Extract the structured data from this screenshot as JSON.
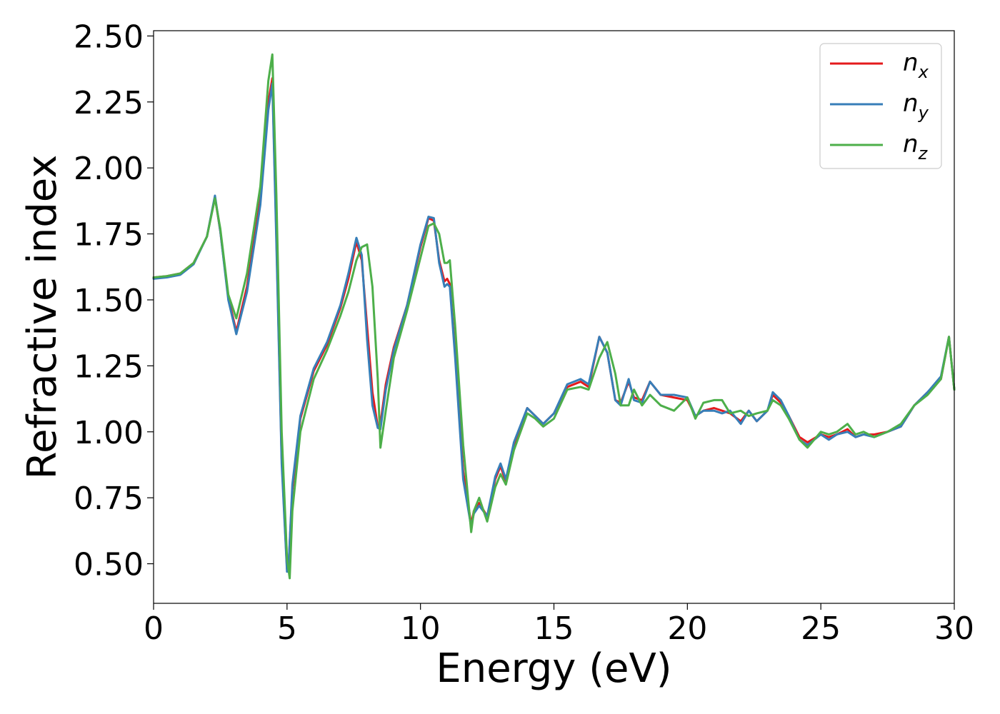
{
  "chart_data": {
    "type": "line",
    "title": "",
    "xlabel": "Energy (eV)",
    "ylabel": "Refractive index",
    "xlim": [
      0,
      30
    ],
    "ylim": [
      0.35,
      2.52
    ],
    "xticks": [
      0,
      5,
      10,
      15,
      20,
      25,
      30
    ],
    "xtick_labels": [
      "0",
      "5",
      "10",
      "15",
      "20",
      "25",
      "30"
    ],
    "yticks": [
      0.5,
      0.75,
      1.0,
      1.25,
      1.5,
      1.75,
      2.0,
      2.25,
      2.5
    ],
    "ytick_labels": [
      "0.50",
      "0.75",
      "1.00",
      "1.25",
      "1.50",
      "1.75",
      "2.00",
      "2.25",
      "2.50"
    ],
    "grid": false,
    "legend": {
      "position": "top-right",
      "entries": [
        {
          "base": "n",
          "sub": "x",
          "color": "#e41a1c"
        },
        {
          "base": "n",
          "sub": "y",
          "color": "#377eb8"
        },
        {
          "base": "n",
          "sub": "z",
          "color": "#4daf4a"
        }
      ]
    },
    "series": [
      {
        "name": "n_x",
        "color": "#e41a1c",
        "x": [
          0,
          0.5,
          1,
          1.5,
          2,
          2.3,
          2.5,
          2.8,
          3.1,
          3.5,
          4,
          4.3,
          4.45,
          4.6,
          4.8,
          5,
          5.05,
          5.2,
          5.5,
          6,
          6.5,
          7,
          7.3,
          7.6,
          7.8,
          8,
          8.2,
          8.4,
          8.5,
          8.7,
          9,
          9.5,
          10,
          10.3,
          10.5,
          10.7,
          10.9,
          11,
          11.1,
          11.3,
          11.6,
          11.9,
          12,
          12.2,
          12.5,
          12.8,
          13,
          13.2,
          13.5,
          14,
          14.3,
          14.6,
          15,
          15.5,
          16,
          16.3,
          16.7,
          17,
          17.3,
          17.5,
          17.8,
          18,
          18.3,
          18.6,
          19,
          19.5,
          20,
          20.3,
          20.6,
          21,
          21.3,
          21.6,
          22,
          22.3,
          22.6,
          23,
          23.2,
          23.5,
          23.8,
          24.2,
          24.5,
          25,
          25.3,
          25.6,
          26,
          26.3,
          26.6,
          27,
          27.5,
          28,
          28.5,
          29,
          29.5,
          29.8,
          30
        ],
        "y": [
          1.585,
          1.59,
          1.6,
          1.64,
          1.74,
          1.89,
          1.76,
          1.51,
          1.38,
          1.55,
          1.88,
          2.25,
          2.34,
          1.75,
          0.9,
          0.48,
          0.47,
          0.78,
          1.05,
          1.23,
          1.33,
          1.47,
          1.58,
          1.72,
          1.65,
          1.4,
          1.15,
          1.02,
          1.03,
          1.18,
          1.32,
          1.48,
          1.7,
          1.81,
          1.8,
          1.65,
          1.57,
          1.58,
          1.56,
          1.3,
          0.85,
          0.65,
          0.7,
          0.73,
          0.68,
          0.82,
          0.87,
          0.81,
          0.95,
          1.09,
          1.06,
          1.03,
          1.07,
          1.17,
          1.19,
          1.17,
          1.36,
          1.3,
          1.12,
          1.11,
          1.19,
          1.13,
          1.12,
          1.19,
          1.14,
          1.13,
          1.12,
          1.06,
          1.08,
          1.09,
          1.08,
          1.07,
          1.04,
          1.08,
          1.04,
          1.08,
          1.14,
          1.11,
          1.06,
          0.98,
          0.96,
          0.99,
          0.98,
          0.99,
          1.01,
          0.98,
          0.99,
          0.99,
          1,
          1.02,
          1.1,
          1.15,
          1.2,
          1.36,
          1.16
        ]
      },
      {
        "name": "n_y",
        "color": "#377eb8",
        "x": [
          0,
          0.5,
          1,
          1.5,
          2,
          2.3,
          2.5,
          2.8,
          3.1,
          3.5,
          4,
          4.3,
          4.45,
          4.6,
          4.8,
          5,
          5.05,
          5.2,
          5.5,
          6,
          6.5,
          7,
          7.3,
          7.6,
          7.8,
          8,
          8.2,
          8.4,
          8.5,
          8.7,
          9,
          9.5,
          10,
          10.3,
          10.5,
          10.7,
          10.9,
          11,
          11.1,
          11.3,
          11.6,
          11.9,
          12,
          12.2,
          12.5,
          12.8,
          13,
          13.2,
          13.5,
          14,
          14.3,
          14.6,
          15,
          15.5,
          16,
          16.3,
          16.7,
          17,
          17.3,
          17.5,
          17.8,
          18,
          18.3,
          18.6,
          19,
          19.5,
          20,
          20.3,
          20.6,
          21,
          21.3,
          21.6,
          22,
          22.3,
          22.6,
          23,
          23.2,
          23.5,
          23.8,
          24.2,
          24.5,
          25,
          25.3,
          25.6,
          26,
          26.3,
          26.6,
          27,
          27.5,
          28,
          28.5,
          29,
          29.5,
          29.8,
          30
        ],
        "y": [
          1.58,
          1.585,
          1.595,
          1.635,
          1.74,
          1.895,
          1.76,
          1.5,
          1.37,
          1.53,
          1.86,
          2.22,
          2.32,
          1.72,
          0.88,
          0.47,
          0.47,
          0.8,
          1.06,
          1.24,
          1.34,
          1.48,
          1.6,
          1.735,
          1.67,
          1.35,
          1.1,
          1.015,
          1.01,
          1.16,
          1.31,
          1.48,
          1.71,
          1.815,
          1.81,
          1.64,
          1.55,
          1.56,
          1.55,
          1.28,
          0.82,
          0.64,
          0.69,
          0.72,
          0.68,
          0.83,
          0.88,
          0.82,
          0.96,
          1.09,
          1.06,
          1.03,
          1.07,
          1.18,
          1.2,
          1.18,
          1.36,
          1.3,
          1.12,
          1.1,
          1.2,
          1.12,
          1.11,
          1.19,
          1.14,
          1.14,
          1.13,
          1.06,
          1.08,
          1.08,
          1.07,
          1.08,
          1.03,
          1.08,
          1.04,
          1.08,
          1.15,
          1.12,
          1.06,
          0.97,
          0.95,
          0.99,
          0.97,
          0.99,
          1,
          0.98,
          0.99,
          0.98,
          1,
          1.02,
          1.1,
          1.15,
          1.21,
          1.36,
          1.16
        ]
      },
      {
        "name": "n_z",
        "color": "#4daf4a",
        "x": [
          0,
          0.5,
          1,
          1.5,
          2,
          2.3,
          2.5,
          2.8,
          3.1,
          3.5,
          4,
          4.3,
          4.45,
          4.6,
          4.8,
          5,
          5.1,
          5.2,
          5.5,
          6,
          6.5,
          7,
          7.3,
          7.6,
          7.8,
          8,
          8.2,
          8.4,
          8.5,
          8.7,
          9,
          9.5,
          10,
          10.3,
          10.5,
          10.7,
          10.9,
          11,
          11.1,
          11.3,
          11.6,
          11.9,
          12,
          12.2,
          12.5,
          12.8,
          13,
          13.2,
          13.5,
          14,
          14.3,
          14.6,
          15,
          15.5,
          16,
          16.3,
          16.7,
          17,
          17.3,
          17.5,
          17.8,
          18,
          18.3,
          18.6,
          19,
          19.5,
          20,
          20.3,
          20.6,
          21,
          21.3,
          21.6,
          22,
          22.3,
          22.6,
          23,
          23.2,
          23.5,
          23.8,
          24.2,
          24.5,
          25,
          25.3,
          25.6,
          26,
          26.3,
          26.6,
          27,
          27.5,
          28,
          28.5,
          29,
          29.5,
          29.8,
          30
        ],
        "y": [
          1.585,
          1.59,
          1.6,
          1.64,
          1.74,
          1.885,
          1.77,
          1.52,
          1.43,
          1.6,
          1.93,
          2.33,
          2.43,
          1.9,
          1.0,
          0.52,
          0.445,
          0.7,
          1.0,
          1.2,
          1.31,
          1.44,
          1.53,
          1.65,
          1.7,
          1.71,
          1.55,
          1.2,
          0.94,
          1.08,
          1.28,
          1.46,
          1.66,
          1.78,
          1.79,
          1.75,
          1.64,
          1.64,
          1.65,
          1.4,
          0.95,
          0.62,
          0.7,
          0.75,
          0.66,
          0.79,
          0.84,
          0.8,
          0.93,
          1.07,
          1.05,
          1.02,
          1.05,
          1.16,
          1.17,
          1.16,
          1.28,
          1.34,
          1.22,
          1.1,
          1.1,
          1.16,
          1.1,
          1.14,
          1.1,
          1.08,
          1.13,
          1.05,
          1.11,
          1.12,
          1.12,
          1.07,
          1.08,
          1.06,
          1.07,
          1.08,
          1.12,
          1.1,
          1.05,
          0.97,
          0.94,
          1,
          0.99,
          1,
          1.03,
          0.99,
          1,
          0.98,
          1,
          1.03,
          1.1,
          1.14,
          1.2,
          1.36,
          1.16
        ]
      }
    ]
  }
}
